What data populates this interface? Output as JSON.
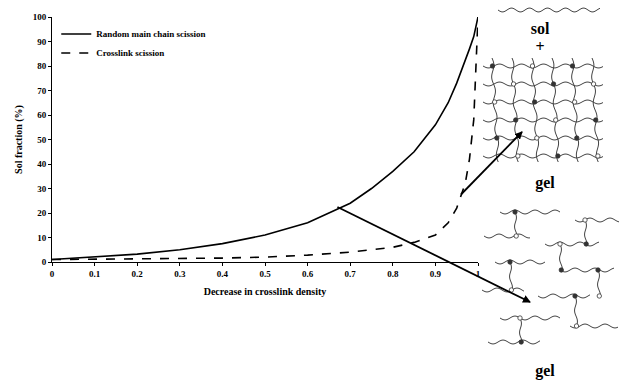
{
  "chart_data": {
    "type": "line",
    "x_label": "Decrease in crosslink density",
    "y_label": "Sol fraction (%)",
    "xlim": [
      0,
      1
    ],
    "xticks": [
      0,
      0.1,
      0.2,
      0.3,
      0.4,
      0.5,
      0.6,
      0.7,
      0.8,
      0.9,
      1
    ],
    "ylim": [
      0,
      100
    ],
    "yticks": [
      0,
      10,
      20,
      30,
      40,
      50,
      60,
      70,
      80,
      90,
      100
    ],
    "grid": false,
    "legend": "top left",
    "series": [
      {
        "name": "Random main chain scission",
        "color": "#000000",
        "line_style": "solid",
        "x": [
          0,
          0.1,
          0.2,
          0.3,
          0.4,
          0.5,
          0.6,
          0.7,
          0.75,
          0.8,
          0.85,
          0.9,
          0.93,
          0.95,
          0.97,
          0.98,
          0.99,
          1
        ],
        "values": [
          1,
          2,
          3.2,
          5,
          7.5,
          11,
          16,
          24,
          30,
          37,
          45,
          56,
          65,
          73,
          82,
          87,
          92,
          100
        ]
      },
      {
        "name": "Crosslink scission",
        "color": "#000000",
        "line_style": "dash",
        "x": [
          0,
          0.2,
          0.4,
          0.5,
          0.6,
          0.7,
          0.8,
          0.85,
          0.9,
          0.93,
          0.95,
          0.97,
          0.98,
          0.99,
          1
        ],
        "values": [
          1,
          1.2,
          1.6,
          2,
          2.8,
          4,
          6,
          8,
          11,
          16,
          22,
          32,
          42,
          58,
          100
        ]
      }
    ],
    "annotations": [
      {
        "text": "sol"
      },
      {
        "text": "+"
      },
      {
        "text": "gel"
      },
      {
        "text": "gel"
      }
    ]
  }
}
